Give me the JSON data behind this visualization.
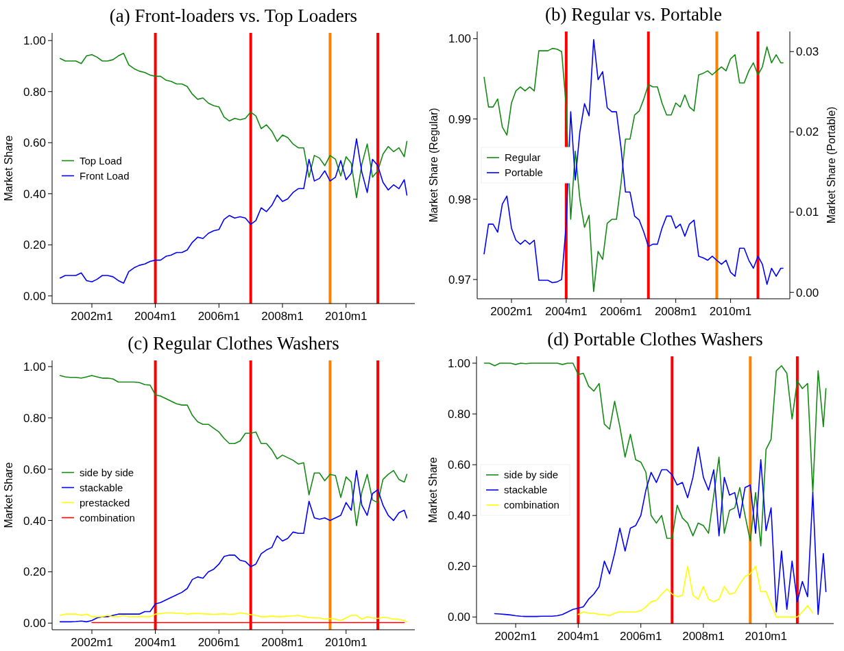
{
  "chart_data": [
    {
      "type": "line",
      "title": "(a) Front-loaders vs. Top Loaders",
      "ylabel": "Market Share",
      "legend": "left",
      "x": [
        "2001-01",
        "2001-03",
        "2001-05",
        "2001-07",
        "2001-09",
        "2001-11",
        "2002-01",
        "2002-03",
        "2002-05",
        "2002-07",
        "2002-09",
        "2002-11",
        "2003-01",
        "2003-03",
        "2003-05",
        "2003-07",
        "2003-09",
        "2003-11",
        "2004-01",
        "2004-03",
        "2004-05",
        "2004-07",
        "2004-09",
        "2004-11",
        "2005-01",
        "2005-03",
        "2005-05",
        "2005-07",
        "2005-09",
        "2005-11",
        "2006-01",
        "2006-03",
        "2006-05",
        "2006-07",
        "2006-09",
        "2006-11",
        "2007-01",
        "2007-03",
        "2007-05",
        "2007-07",
        "2007-09",
        "2007-11",
        "2008-01",
        "2008-03",
        "2008-05",
        "2008-07",
        "2008-09",
        "2008-11",
        "2009-01",
        "2009-03",
        "2009-05",
        "2009-07",
        "2009-09",
        "2009-11",
        "2010-01",
        "2010-03",
        "2010-05",
        "2010-07",
        "2010-09",
        "2010-11",
        "2011-01",
        "2011-03",
        "2011-05",
        "2011-07",
        "2011-09",
        "2011-11",
        "2011-12"
      ],
      "xlim": [
        "2000-10",
        "2012-03"
      ],
      "xticks": [
        {
          "value": "2002-01",
          "label": "2002m1"
        },
        {
          "value": "2004-01",
          "label": "2004m1"
        },
        {
          "value": "2006-01",
          "label": "2006m1"
        },
        {
          "value": "2008-01",
          "label": "2008m1"
        },
        {
          "value": "2010-01",
          "label": "2010m1"
        }
      ],
      "ylim": [
        -0.03,
        1.03
      ],
      "yticks": [
        {
          "value": 0,
          "label": "0.00"
        },
        {
          "value": 0.2,
          "label": "0.20"
        },
        {
          "value": 0.4,
          "label": "0.40"
        },
        {
          "value": 0.6,
          "label": "0.60"
        },
        {
          "value": 0.8,
          "label": "0.80"
        },
        {
          "value": 1,
          "label": "1.00"
        }
      ],
      "ref_lines": [
        {
          "axis": "x",
          "value": "2004-01",
          "color": "#ff0000"
        },
        {
          "axis": "x",
          "value": "2007-01",
          "color": "#ff0000"
        },
        {
          "axis": "x",
          "value": "2009-07",
          "color": "#ff8000"
        },
        {
          "axis": "x",
          "value": "2011-01",
          "color": "#ff0000"
        }
      ],
      "series": [
        {
          "name": "Top Load",
          "color": "#138a13",
          "values": [
            0.93,
            0.92,
            0.92,
            0.92,
            0.91,
            0.94,
            0.945,
            0.935,
            0.92,
            0.92,
            0.925,
            0.94,
            0.95,
            0.905,
            0.89,
            0.88,
            0.875,
            0.865,
            0.86,
            0.86,
            0.845,
            0.84,
            0.83,
            0.83,
            0.82,
            0.79,
            0.77,
            0.775,
            0.755,
            0.745,
            0.74,
            0.7,
            0.685,
            0.695,
            0.69,
            0.695,
            0.72,
            0.705,
            0.655,
            0.67,
            0.645,
            0.605,
            0.63,
            0.62,
            0.595,
            0.58,
            0.58,
            0.465,
            0.55,
            0.54,
            0.51,
            0.55,
            0.535,
            0.47,
            0.545,
            0.52,
            0.385,
            0.515,
            0.595,
            0.465,
            0.49,
            0.555,
            0.585,
            0.565,
            0.58,
            0.545,
            0.605
          ]
        },
        {
          "name": "Front Load",
          "color": "#0000ff",
          "values": [
            0.07,
            0.08,
            0.08,
            0.08,
            0.09,
            0.06,
            0.055,
            0.065,
            0.08,
            0.08,
            0.075,
            0.06,
            0.05,
            0.095,
            0.11,
            0.12,
            0.125,
            0.135,
            0.14,
            0.14,
            0.155,
            0.16,
            0.17,
            0.17,
            0.18,
            0.21,
            0.23,
            0.225,
            0.245,
            0.255,
            0.26,
            0.3,
            0.315,
            0.305,
            0.31,
            0.305,
            0.28,
            0.295,
            0.345,
            0.33,
            0.355,
            0.395,
            0.37,
            0.38,
            0.405,
            0.42,
            0.42,
            0.535,
            0.45,
            0.46,
            0.49,
            0.45,
            0.465,
            0.53,
            0.455,
            0.48,
            0.615,
            0.485,
            0.405,
            0.535,
            0.51,
            0.445,
            0.415,
            0.435,
            0.42,
            0.455,
            0.395
          ]
        }
      ]
    },
    {
      "type": "line",
      "title": "(b) Regular vs. Portable",
      "ylabel": "Market Share (Regular)",
      "y2label": "Market Share (Portable)",
      "legend": "left",
      "x": [
        "2001-01",
        "2001-03",
        "2001-05",
        "2001-07",
        "2001-09",
        "2001-11",
        "2002-01",
        "2002-03",
        "2002-05",
        "2002-07",
        "2002-09",
        "2002-11",
        "2003-01",
        "2003-03",
        "2003-05",
        "2003-07",
        "2003-09",
        "2003-11",
        "2004-01",
        "2004-03",
        "2004-05",
        "2004-07",
        "2004-09",
        "2004-11",
        "2005-01",
        "2005-03",
        "2005-05",
        "2005-07",
        "2005-09",
        "2005-11",
        "2006-01",
        "2006-03",
        "2006-05",
        "2006-07",
        "2006-09",
        "2006-11",
        "2007-01",
        "2007-03",
        "2007-05",
        "2007-07",
        "2007-09",
        "2007-11",
        "2008-01",
        "2008-03",
        "2008-05",
        "2008-07",
        "2008-09",
        "2008-11",
        "2009-01",
        "2009-03",
        "2009-05",
        "2009-07",
        "2009-09",
        "2009-11",
        "2010-01",
        "2010-03",
        "2010-05",
        "2010-07",
        "2010-09",
        "2010-11",
        "2011-01",
        "2011-03",
        "2011-05",
        "2011-07",
        "2011-09",
        "2011-11",
        "2011-12"
      ],
      "xlim": [
        "2000-10",
        "2012-03"
      ],
      "xticks": [
        {
          "value": "2002-01",
          "label": "2002m1"
        },
        {
          "value": "2004-01",
          "label": "2004m1"
        },
        {
          "value": "2006-01",
          "label": "2006m1"
        },
        {
          "value": "2008-01",
          "label": "2008m1"
        },
        {
          "value": "2010-01",
          "label": "2010m1"
        }
      ],
      "ylim": [
        0.9676,
        1.0009
      ],
      "yticks": [
        0.97,
        0.98,
        0.99,
        {
          "value": 1,
          "label": "1.00"
        }
      ],
      "y2lim": [
        -0.0008,
        0.0325
      ],
      "y2ticks": [
        {
          "value": 0,
          "label": "0.00"
        },
        0.01,
        0.02,
        0.03
      ],
      "ref_lines": [
        {
          "axis": "x",
          "value": "2004-01",
          "color": "#ff0000"
        },
        {
          "axis": "x",
          "value": "2007-01",
          "color": "#ff0000"
        },
        {
          "axis": "x",
          "value": "2009-07",
          "color": "#ff8000"
        },
        {
          "axis": "x",
          "value": "2011-01",
          "color": "#ff0000"
        }
      ],
      "series": [
        {
          "name": "Regular",
          "color": "#138a13",
          "values": [
            0.9952,
            0.9915,
            0.9915,
            0.9925,
            0.989,
            0.988,
            0.992,
            0.9935,
            0.994,
            0.9935,
            0.994,
            0.9935,
            0.9985,
            0.9985,
            0.9985,
            0.9988,
            0.9987,
            0.9984,
            0.9915,
            0.9775,
            0.986,
            0.98,
            0.9765,
            0.978,
            0.9685,
            0.9735,
            0.9725,
            0.977,
            0.9775,
            0.9775,
            0.982,
            0.9875,
            0.9875,
            0.9905,
            0.991,
            0.9925,
            0.9943,
            0.994,
            0.994,
            0.992,
            0.9905,
            0.9905,
            0.992,
            0.9915,
            0.993,
            0.9915,
            0.991,
            0.9955,
            0.9957,
            0.996,
            0.9955,
            0.996,
            0.9965,
            0.996,
            0.9975,
            0.998,
            0.9945,
            0.9945,
            0.996,
            0.997,
            0.9955,
            0.9965,
            0.999,
            0.997,
            0.998,
            0.997,
            0.997
          ]
        },
        {
          "name": "Portable",
          "color": "#0000ff",
          "axis": "y2",
          "values": [
            0.0048,
            0.0085,
            0.0085,
            0.0075,
            0.011,
            0.012,
            0.008,
            0.0065,
            0.006,
            0.0065,
            0.006,
            0.0065,
            0.0015,
            0.0015,
            0.0015,
            0.0012,
            0.0013,
            0.0016,
            0.0085,
            0.0225,
            0.014,
            0.02,
            0.0235,
            0.022,
            0.0315,
            0.0265,
            0.0275,
            0.023,
            0.0225,
            0.0225,
            0.018,
            0.0125,
            0.0125,
            0.0095,
            0.009,
            0.0075,
            0.0057,
            0.006,
            0.006,
            0.008,
            0.0095,
            0.0095,
            0.008,
            0.0085,
            0.007,
            0.0085,
            0.009,
            0.0045,
            0.0043,
            0.004,
            0.0045,
            0.004,
            0.0035,
            0.004,
            0.0025,
            0.002,
            0.0055,
            0.0055,
            0.004,
            0.003,
            0.0045,
            0.0035,
            0.001,
            0.003,
            0.002,
            0.003,
            0.003
          ]
        }
      ]
    },
    {
      "type": "line",
      "title": "(c) Regular Clothes Washers",
      "ylabel": "Market Share",
      "legend": "left",
      "x": [
        "2001-01",
        "2001-03",
        "2001-05",
        "2001-07",
        "2001-09",
        "2001-11",
        "2002-01",
        "2002-03",
        "2002-05",
        "2002-07",
        "2002-09",
        "2002-11",
        "2003-01",
        "2003-03",
        "2003-05",
        "2003-07",
        "2003-09",
        "2003-11",
        "2004-01",
        "2004-03",
        "2004-05",
        "2004-07",
        "2004-09",
        "2004-11",
        "2005-01",
        "2005-03",
        "2005-05",
        "2005-07",
        "2005-09",
        "2005-11",
        "2006-01",
        "2006-03",
        "2006-05",
        "2006-07",
        "2006-09",
        "2006-11",
        "2007-01",
        "2007-03",
        "2007-05",
        "2007-07",
        "2007-09",
        "2007-11",
        "2008-01",
        "2008-03",
        "2008-05",
        "2008-07",
        "2008-09",
        "2008-11",
        "2009-01",
        "2009-03",
        "2009-05",
        "2009-07",
        "2009-09",
        "2009-11",
        "2010-01",
        "2010-03",
        "2010-05",
        "2010-07",
        "2010-09",
        "2010-11",
        "2011-01",
        "2011-03",
        "2011-05",
        "2011-07",
        "2011-09",
        "2011-11",
        "2011-12"
      ],
      "xlim": [
        "2000-10",
        "2012-03"
      ],
      "xticks": [
        {
          "value": "2002-01",
          "label": "2002m1"
        },
        {
          "value": "2004-01",
          "label": "2004m1"
        },
        {
          "value": "2006-01",
          "label": "2006m1"
        },
        {
          "value": "2008-01",
          "label": "2008m1"
        },
        {
          "value": "2010-01",
          "label": "2010m1"
        }
      ],
      "ylim": [
        -0.026,
        1.024
      ],
      "yticks": [
        {
          "value": 0,
          "label": "0.00"
        },
        {
          "value": 0.2,
          "label": "0.20"
        },
        {
          "value": 0.4,
          "label": "0.40"
        },
        {
          "value": 0.6,
          "label": "0.60"
        },
        {
          "value": 0.8,
          "label": "0.80"
        },
        {
          "value": 1,
          "label": "1.00"
        }
      ],
      "ref_lines": [
        {
          "axis": "x",
          "value": "2004-01",
          "color": "#ff0000"
        },
        {
          "axis": "x",
          "value": "2007-01",
          "color": "#ff0000"
        },
        {
          "axis": "x",
          "value": "2009-07",
          "color": "#ff8000"
        },
        {
          "axis": "x",
          "value": "2011-01",
          "color": "#ff0000"
        }
      ],
      "series": [
        {
          "name": "side by side",
          "color": "#138a13",
          "values": [
            0.965,
            0.96,
            0.958,
            0.958,
            0.955,
            0.96,
            0.965,
            0.96,
            0.955,
            0.955,
            0.952,
            0.94,
            0.94,
            0.94,
            0.94,
            0.938,
            0.93,
            0.928,
            0.89,
            0.885,
            0.875,
            0.865,
            0.855,
            0.85,
            0.85,
            0.81,
            0.785,
            0.775,
            0.775,
            0.76,
            0.745,
            0.72,
            0.7,
            0.7,
            0.71,
            0.74,
            0.74,
            0.745,
            0.7,
            0.7,
            0.675,
            0.64,
            0.655,
            0.645,
            0.635,
            0.62,
            0.625,
            0.5,
            0.585,
            0.585,
            0.555,
            0.58,
            0.575,
            0.49,
            0.57,
            0.55,
            0.38,
            0.51,
            0.58,
            0.48,
            0.47,
            0.56,
            0.58,
            0.595,
            0.56,
            0.55,
            0.58
          ]
        },
        {
          "name": "stackable",
          "color": "#0000ff",
          "values": [
            0.005,
            0.005,
            0.005,
            0.006,
            0.008,
            0.005,
            0.01,
            0.02,
            0.025,
            0.025,
            0.03,
            0.035,
            0.035,
            0.035,
            0.035,
            0.035,
            0.045,
            0.045,
            0.075,
            0.08,
            0.09,
            0.1,
            0.11,
            0.12,
            0.135,
            0.17,
            0.18,
            0.175,
            0.2,
            0.21,
            0.23,
            0.26,
            0.265,
            0.265,
            0.245,
            0.24,
            0.22,
            0.23,
            0.27,
            0.285,
            0.295,
            0.34,
            0.32,
            0.33,
            0.355,
            0.35,
            0.35,
            0.475,
            0.41,
            0.405,
            0.41,
            0.4,
            0.41,
            0.42,
            0.47,
            0.44,
            0.595,
            0.46,
            0.42,
            0.505,
            0.52,
            0.46,
            0.42,
            0.4,
            0.43,
            0.44,
            0.41
          ]
        },
        {
          "name": "prestacked",
          "color": "#ffff00",
          "values": [
            0.03,
            0.035,
            0.035,
            0.035,
            0.03,
            0.035,
            0.025,
            0.025,
            0.025,
            0.03,
            0.025,
            0.025,
            0.03,
            0.025,
            0.025,
            0.025,
            0.025,
            0.025,
            0.035,
            0.037,
            0.04,
            0.04,
            0.038,
            0.038,
            0.035,
            0.037,
            0.037,
            0.036,
            0.035,
            0.034,
            0.035,
            0.036,
            0.034,
            0.035,
            0.04,
            0.037,
            0.033,
            0.03,
            0.025,
            0.025,
            0.027,
            0.025,
            0.025,
            0.027,
            0.028,
            0.03,
            0.025,
            0.022,
            0.02,
            0.02,
            0.015,
            0.018,
            0.015,
            0.01,
            0.02,
            0.03,
            0.03,
            0.015,
            0.025,
            0.02,
            0.018,
            0.022,
            0.02,
            0.015,
            0.015,
            0.01,
            0.005
          ]
        },
        {
          "name": "combination",
          "color": "#ff0000",
          "values": [
            null,
            null,
            null,
            null,
            null,
            null,
            0.002,
            0.002,
            0.002,
            0.002,
            0.002,
            0.002,
            0.002,
            0.002,
            0.002,
            0.002,
            0.002,
            0.002,
            0.002,
            0.002,
            0.002,
            0.002,
            0.002,
            0.002,
            0.002,
            0.002,
            0.002,
            0.002,
            0.002,
            0.002,
            0.002,
            0.002,
            0.002,
            0.002,
            0.002,
            0.002,
            0.002,
            0.002,
            0.002,
            0.002,
            0.002,
            0.002,
            0.002,
            0.002,
            0.002,
            0.002,
            0.002,
            0.002,
            0.002,
            0.002,
            0.002,
            0.002,
            0.002,
            0.002,
            0.002,
            0.002,
            0.002,
            0.002,
            0.002,
            0.002,
            0.002,
            0.002,
            0.002,
            0.002,
            0.002,
            0.002,
            null
          ]
        }
      ]
    },
    {
      "type": "line",
      "title": "(d) Portable Clothes Washers",
      "ylabel": "Market Share",
      "legend": "left",
      "x": [
        "2001-01",
        "2001-03",
        "2001-05",
        "2001-07",
        "2001-09",
        "2001-11",
        "2002-01",
        "2002-03",
        "2002-05",
        "2002-07",
        "2002-09",
        "2002-11",
        "2003-01",
        "2003-03",
        "2003-05",
        "2003-07",
        "2003-09",
        "2003-11",
        "2004-01",
        "2004-03",
        "2004-05",
        "2004-07",
        "2004-09",
        "2004-11",
        "2005-01",
        "2005-03",
        "2005-05",
        "2005-07",
        "2005-09",
        "2005-11",
        "2006-01",
        "2006-03",
        "2006-05",
        "2006-07",
        "2006-09",
        "2006-11",
        "2007-01",
        "2007-03",
        "2007-05",
        "2007-07",
        "2007-09",
        "2007-11",
        "2008-01",
        "2008-03",
        "2008-05",
        "2008-07",
        "2008-09",
        "2008-11",
        "2009-01",
        "2009-03",
        "2009-05",
        "2009-07",
        "2009-09",
        "2009-11",
        "2010-01",
        "2010-03",
        "2010-05",
        "2010-07",
        "2010-09",
        "2010-11",
        "2011-01",
        "2011-03",
        "2011-05",
        "2011-07",
        "2011-09",
        "2011-11",
        "2011-12"
      ],
      "xlim": [
        "2000-10",
        "2012-03"
      ],
      "xticks": [
        {
          "value": "2002-01",
          "label": "2002m1"
        },
        {
          "value": "2004-01",
          "label": "2004m1"
        },
        {
          "value": "2006-01",
          "label": "2006m1"
        },
        {
          "value": "2008-01",
          "label": "2008m1"
        },
        {
          "value": "2010-01",
          "label": "2010m1"
        }
      ],
      "ylim": [
        -0.026,
        1.027
      ],
      "yticks": [
        {
          "value": 0,
          "label": "0.00"
        },
        {
          "value": 0.2,
          "label": "0.20"
        },
        {
          "value": 0.4,
          "label": "0.40"
        },
        {
          "value": 0.6,
          "label": "0.60"
        },
        {
          "value": 0.8,
          "label": "0.80"
        },
        {
          "value": 1,
          "label": "1.00"
        }
      ],
      "ref_lines": [
        {
          "axis": "x",
          "value": "2004-01",
          "color": "#ff0000"
        },
        {
          "axis": "x",
          "value": "2007-01",
          "color": "#ff0000"
        },
        {
          "axis": "x",
          "value": "2009-07",
          "color": "#ff8000"
        },
        {
          "axis": "x",
          "value": "2011-01",
          "color": "#ff0000"
        }
      ],
      "series": [
        {
          "name": "side by side",
          "color": "#138a13",
          "values": [
            1.0,
            1.0,
            0.99,
            1.0,
            1.0,
            1.0,
            0.995,
            1.0,
            0.998,
            1.0,
            1.0,
            1.0,
            1.0,
            1.0,
            1.0,
            0.995,
            1.0,
            1.0,
            0.955,
            0.96,
            0.91,
            0.89,
            0.92,
            0.76,
            0.74,
            0.85,
            0.75,
            0.63,
            0.72,
            0.62,
            0.61,
            0.57,
            0.4,
            0.37,
            0.4,
            0.31,
            0.31,
            0.44,
            0.39,
            0.37,
            0.32,
            0.37,
            0.36,
            0.33,
            0.48,
            0.63,
            0.33,
            0.42,
            0.43,
            0.51,
            0.4,
            0.3,
            0.49,
            0.28,
            0.66,
            0.7,
            0.97,
            0.99,
            0.96,
            0.78,
            0.93,
            0.9,
            0.92,
            0.49,
            0.97,
            0.75,
            0.9
          ]
        },
        {
          "name": "stackable",
          "color": "#0000ff",
          "values": [
            null,
            null,
            0.013,
            0.012,
            0.01,
            0.008,
            0.005,
            0.003,
            0.002,
            0.002,
            0.002,
            0.003,
            0.003,
            0.003,
            0.005,
            0.01,
            0.02,
            0.03,
            0.035,
            0.04,
            0.07,
            0.09,
            0.12,
            0.22,
            0.17,
            0.25,
            0.35,
            0.26,
            0.35,
            0.36,
            0.4,
            0.5,
            0.57,
            0.53,
            0.58,
            0.58,
            0.56,
            0.52,
            0.53,
            0.47,
            0.55,
            0.67,
            0.55,
            0.5,
            0.58,
            0.32,
            0.55,
            0.48,
            0.49,
            0.39,
            0.51,
            0.52,
            0.33,
            0.62,
            0.34,
            0.43,
            0.02,
            0.26,
            0.03,
            0.22,
            0.06,
            0.14,
            0.08,
            0.49,
            0.01,
            0.25,
            0.1
          ]
        },
        {
          "name": "combination",
          "color": "#ffff00",
          "values": [
            null,
            null,
            null,
            null,
            null,
            null,
            null,
            null,
            null,
            null,
            null,
            null,
            null,
            null,
            null,
            null,
            null,
            null,
            0.01,
            0.02,
            0.015,
            0.015,
            0.01,
            0.01,
            0.005,
            0.015,
            0.02,
            0.02,
            0.02,
            0.02,
            0.025,
            0.04,
            0.06,
            0.065,
            0.09,
            0.11,
            0.09,
            0.08,
            0.085,
            0.2,
            0.085,
            0.07,
            0.12,
            0.07,
            0.06,
            0.07,
            0.12,
            0.09,
            0.095,
            0.13,
            0.16,
            0.17,
            0.2,
            0.1,
            0.1,
            0.05,
            0.0,
            0.0,
            0.0,
            0.0,
            0.0,
            0.02,
            0.045,
            0.015,
            null,
            null,
            null
          ]
        }
      ]
    }
  ]
}
